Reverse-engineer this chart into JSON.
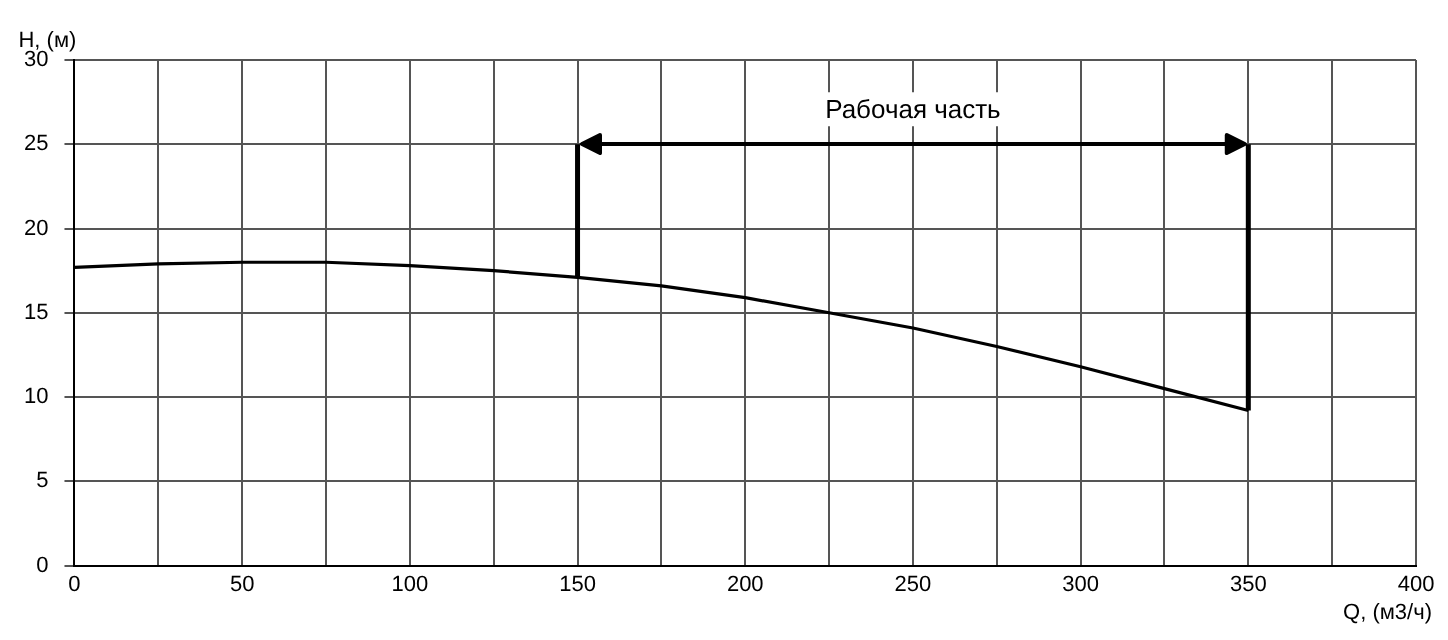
{
  "chart_data": {
    "type": "line",
    "xlabel": "Q, (м3/ч)",
    "ylabel": "H, (м)",
    "x": [
      0,
      25,
      50,
      75,
      100,
      125,
      150,
      175,
      200,
      225,
      250,
      275,
      300,
      325,
      350
    ],
    "series": [
      {
        "color": "#000000",
        "values": [
          17.7,
          17.9,
          18.0,
          18.0,
          17.8,
          17.5,
          17.1,
          16.6,
          15.9,
          15.0,
          14.1,
          13.0,
          11.8,
          10.5,
          9.2
        ]
      }
    ],
    "xlim": [
      0,
      400
    ],
    "xticks": [
      0,
      {
        "value": 25,
        "label": null
      },
      50,
      {
        "value": 75,
        "label": null
      },
      100,
      {
        "value": 125,
        "label": null
      },
      150,
      {
        "value": 175,
        "label": null
      },
      200,
      {
        "value": 225,
        "label": null
      },
      250,
      {
        "value": 275,
        "label": null
      },
      300,
      {
        "value": 325,
        "label": null
      },
      350,
      {
        "value": 375,
        "label": null
      },
      400
    ],
    "ylim": [
      0,
      30
    ],
    "yticks": [
      0,
      5,
      10,
      15,
      20,
      25,
      30
    ],
    "ref_lines": [
      {
        "axis": "x",
        "value": 150
      },
      {
        "axis": "x",
        "value": 350
      },
      {
        "axis": "y",
        "value": 25,
        "label": "Рабочая часть"
      }
    ],
    "grid": true,
    "legend": false,
    "marker": "none",
    "line_style": "solid"
  }
}
